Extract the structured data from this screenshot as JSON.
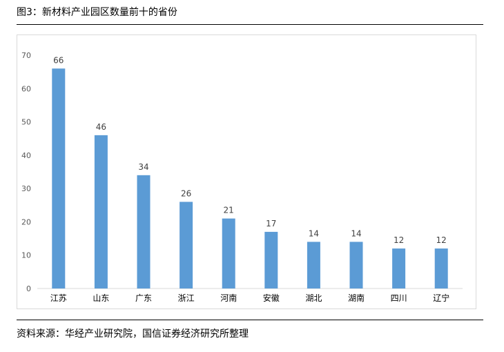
{
  "figure": {
    "title": "图3：新材料产业园区数量前十的省份",
    "source": "资料来源：华经产业研究院，国信证券经济研究所整理"
  },
  "colors": {
    "bar": "#5b9bd5",
    "grid": "#d9d9d9",
    "axis_text": "#595959",
    "label_text": "#404040"
  },
  "chart_data": {
    "type": "bar",
    "title": "",
    "xlabel": "",
    "ylabel": "",
    "categories": [
      "江苏",
      "山东",
      "广东",
      "浙江",
      "河南",
      "安徽",
      "湖北",
      "湖南",
      "四川",
      "辽宁"
    ],
    "values": [
      66,
      46,
      34,
      26,
      21,
      17,
      14,
      14,
      12,
      12
    ],
    "ylim": [
      0,
      70
    ],
    "yticks": [
      0,
      10,
      20,
      30,
      40,
      50,
      60,
      70
    ],
    "data_labels": true,
    "grid": false,
    "legend": "none"
  }
}
